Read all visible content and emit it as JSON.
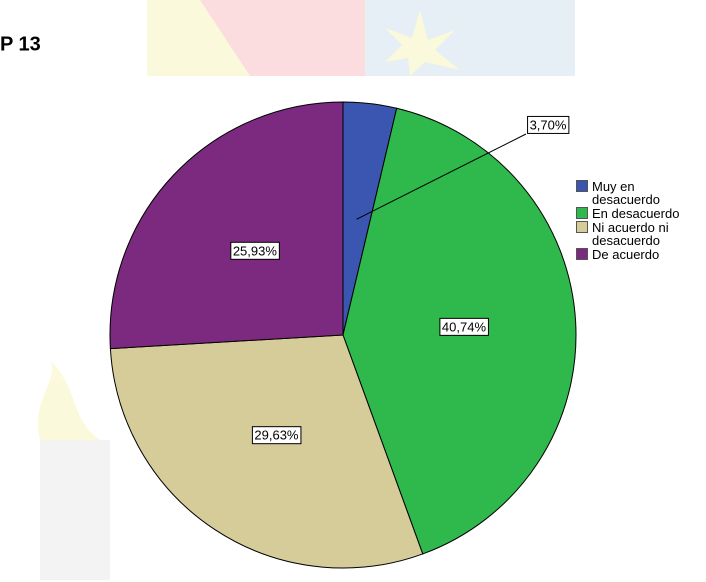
{
  "heading": "P 13",
  "chart_data": {
    "type": "pie",
    "categories": [
      "Muy en desacuerdo",
      "En desacuerdo",
      "Ni acuerdo ni desacuerdo",
      "De acuerdo"
    ],
    "values": [
      3.7,
      40.74,
      29.63,
      25.93
    ],
    "value_labels": [
      "3,70%",
      "40,74%",
      "29,63%",
      "25,93%"
    ],
    "colors": [
      "#3b56b0",
      "#2fb84b",
      "#d6cc99",
      "#7c2a7f"
    ]
  }
}
